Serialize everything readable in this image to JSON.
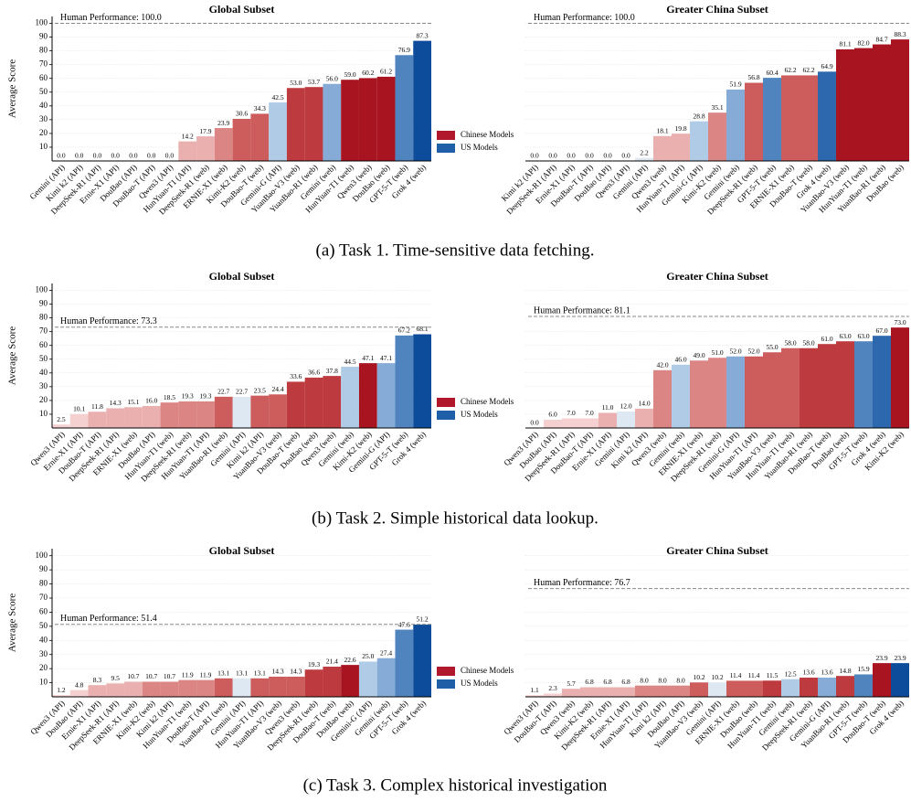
{
  "captions": [
    "(a) Task 1. Time-sensitive data fetching.",
    "(b) Task 2. Simple historical data lookup.",
    "(c) Task 3. Complex historical investigation"
  ],
  "chart_data": [
    {
      "type": "bar",
      "title": "Global Subset",
      "ylabel": "Average Score",
      "yaxis": true,
      "grid": true,
      "ylim": [
        0,
        105
      ],
      "yticks": [
        10,
        20,
        30,
        40,
        50,
        60,
        70,
        80,
        90,
        100
      ],
      "hline": {
        "value": 100,
        "label": "Human Performance: 100.0"
      },
      "legend": [
        {
          "name": "Chinese Models",
          "color": "#b2182b"
        },
        {
          "name": "US Models",
          "color": "#1f5fa8"
        }
      ],
      "categories": [
        "Gemini (API)",
        "Kimi k2 (API)",
        "DeepSeek-R1 (API)",
        "Ernie-X1 (API)",
        "DouBao (API)",
        "DouBao-T (API)",
        "Qwen3 (API)",
        "HunYuan-T1 (API)",
        "DeepSeek-R1 (web)",
        "ERNIE-X1 (web)",
        "Kimi-K2 (web)",
        "DouBao-T (web)",
        "Gemini-G (API)",
        "YuanBao-V3 (web)",
        "YuanBao-R1 (web)",
        "Gemini (web)",
        "HunYuan-T1 (web)",
        "Qwen3 (web)",
        "DouBao (web)",
        "GPT-5-T (web)",
        "Grok 4 (web)"
      ],
      "values": [
        0,
        0,
        0,
        0,
        0,
        0,
        0,
        14.2,
        17.9,
        23.9,
        30.6,
        34.3,
        42.5,
        53.0,
        53.7,
        56.0,
        59.0,
        60.2,
        61.2,
        76.9,
        87.3
      ],
      "value_labels": [
        "0.0",
        "0.0",
        "0.0",
        "0.0",
        "0.0",
        "0.0",
        "0.0",
        "14.2",
        "17.9",
        "23.9",
        "30.6",
        "34.3",
        "42.5",
        "53.0",
        "53.7",
        "56.0",
        "59.0",
        "60.2",
        "61.2",
        "76.9",
        "87.3"
      ],
      "colors": [
        "#dde8f3",
        "#f4d0d0",
        "#f4d0d0",
        "#f4d0d0",
        "#f4d0d0",
        "#f4d0d0",
        "#f4d0d0",
        "#eab0b0",
        "#eab0b0",
        "#dc8585",
        "#cd5c5c",
        "#cd5c5c",
        "#b0cbe6",
        "#bd3a3f",
        "#bd3a3f",
        "#85abd6",
        "#a8141f",
        "#a8141f",
        "#a8141f",
        "#4f84bf",
        "#0d4c9b"
      ]
    },
    {
      "type": "bar",
      "title": "Greater China Subset",
      "yaxis": false,
      "grid": true,
      "ylim": [
        0,
        105
      ],
      "yticks": [
        10,
        20,
        30,
        40,
        50,
        60,
        70,
        80,
        90,
        100
      ],
      "hline": {
        "value": 100,
        "label": "Human Performance: 100.0"
      },
      "categories": [
        "Kimi k2 (API)",
        "DeepSeek-R1 (API)",
        "Ernie-X1 (API)",
        "DouBao-T (API)",
        "DouBao (API)",
        "Qwen3 (API)",
        "Gemini (API)",
        "Qwen3 (web)",
        "HunYuan-T1 (API)",
        "Gemini-G (API)",
        "Kimi-K2 (web)",
        "Gemini (web)",
        "DeepSeek-R1 (web)",
        "GPT-5-T (web)",
        "ERNIE-X1 (web)",
        "DouBao-T (web)",
        "Grok 4 (web)",
        "YuanBao-V3 (web)",
        "HunYuan-T1 (web)",
        "YuanBao-R1 (web)",
        "DouBao (web)"
      ],
      "values": [
        0,
        0,
        0,
        0,
        0,
        0,
        2.2,
        18.1,
        19.8,
        28.8,
        35.1,
        51.9,
        56.8,
        60.4,
        62.2,
        62.2,
        64.9,
        81.1,
        82.0,
        84.7,
        88.3
      ],
      "value_labels": [
        "0.0",
        "0.0",
        "0.0",
        "0.0",
        "0.0",
        "0.0",
        "2.2",
        "18.1",
        "19.8",
        "28.8",
        "35.1",
        "51.9",
        "56.8",
        "60.4",
        "62.2",
        "62.2",
        "64.9",
        "81.1",
        "82.0",
        "84.7",
        "88.3"
      ],
      "colors": [
        "#f4d0d0",
        "#f4d0d0",
        "#f4d0d0",
        "#f4d0d0",
        "#f4d0d0",
        "#f4d0d0",
        "#dde8f3",
        "#eab0b0",
        "#eab0b0",
        "#b0cbe6",
        "#dc8585",
        "#85abd6",
        "#cd5c5c",
        "#4f84bf",
        "#cd5c5c",
        "#cd5c5c",
        "#2d67ad",
        "#a8141f",
        "#a8141f",
        "#a8141f",
        "#a8141f"
      ]
    },
    {
      "type": "bar",
      "title": "Global Subset",
      "ylabel": "Average Score",
      "yaxis": true,
      "grid": true,
      "ylim": [
        0,
        105
      ],
      "yticks": [
        10,
        20,
        30,
        40,
        50,
        60,
        70,
        80,
        90,
        100
      ],
      "hline": {
        "value": 73.3,
        "label": "Human Performance: 73.3"
      },
      "legend": [
        {
          "name": "Chinese Models",
          "color": "#b2182b"
        },
        {
          "name": "US Models",
          "color": "#1f5fa8"
        }
      ],
      "categories": [
        "Qwen3 (API)",
        "Ernie-X1 (API)",
        "DouBao-T (API)",
        "DeepSeek-R1 (API)",
        "ERNIE-X1 (web)",
        "DouBao (API)",
        "HunYuan-T1 (web)",
        "DeepSeek-R1 (web)",
        "HunYuan-T1 (API)",
        "YuanBao-R1 (web)",
        "Gemini (API)",
        "Kimi k2 (API)",
        "YuanBao-V3 (web)",
        "DouBao-T (web)",
        "DouBao (web)",
        "Qwen3 (web)",
        "Gemini (web)",
        "Kimi-K2 (web)",
        "Gemini-G (API)",
        "GPT-5-T (web)",
        "Grok 4 (web)"
      ],
      "values": [
        2.5,
        10.1,
        11.8,
        14.3,
        15.1,
        16.0,
        18.5,
        19.3,
        19.3,
        22.7,
        22.7,
        23.5,
        24.4,
        33.6,
        36.6,
        37.8,
        44.5,
        47.1,
        47.1,
        67.2,
        68.1
      ],
      "value_labels": [
        "2.5",
        "10.1",
        "11.8",
        "14.3",
        "15.1",
        "16.0",
        "18.5",
        "19.3",
        "19.3",
        "22.7",
        "22.7",
        "23.5",
        "24.4",
        "33.6",
        "36.6",
        "37.8",
        "44.5",
        "47.1",
        "47.1",
        "67.2",
        "68.1"
      ],
      "colors": [
        "#f4d0d0",
        "#f4d0d0",
        "#eab0b0",
        "#eab0b0",
        "#eab0b0",
        "#eab0b0",
        "#dc8585",
        "#dc8585",
        "#dc8585",
        "#cd5c5c",
        "#dde8f3",
        "#cd5c5c",
        "#cd5c5c",
        "#bd3a3f",
        "#bd3a3f",
        "#bd3a3f",
        "#b0cbe6",
        "#a8141f",
        "#85abd6",
        "#4f84bf",
        "#0d4c9b"
      ]
    },
    {
      "type": "bar",
      "title": "Greater China Subset",
      "yaxis": false,
      "grid": true,
      "ylim": [
        0,
        105
      ],
      "yticks": [
        10,
        20,
        30,
        40,
        50,
        60,
        70,
        80,
        90,
        100
      ],
      "hline": {
        "value": 81.1,
        "label": "Human Performance: 81.1"
      },
      "categories": [
        "Qwen3 (API)",
        "DouBao (API)",
        "DeepSeek-R1 (API)",
        "DouBao-T (API)",
        "Ernie-X1 (API)",
        "Gemini (API)",
        "Kimi k2 (API)",
        "Qwen3 (web)",
        "Gemini (web)",
        "ERNIE-X1 (web)",
        "DeepSeek-R1 (web)",
        "Gemini-G (API)",
        "HunYuan-T1 (API)",
        "YuanBao-V3 (web)",
        "HunYuan-T1 (web)",
        "YuanBao-R1 (web)",
        "DouBao-T (web)",
        "DouBao (web)",
        "GPT-5-T (web)",
        "Grok 4 (web)",
        "Kimi-K2 (web)"
      ],
      "values": [
        0,
        6.0,
        7.0,
        7.0,
        11.0,
        12.0,
        14.0,
        42.0,
        46.0,
        49.0,
        51.0,
        52.0,
        52.0,
        55.0,
        58.0,
        58.0,
        61.0,
        63.0,
        63.0,
        67.0,
        73.0
      ],
      "value_labels": [
        "0.0",
        "6.0",
        "7.0",
        "7.0",
        "11.0",
        "12.0",
        "14.0",
        "42.0",
        "46.0",
        "49.0",
        "51.0",
        "52.0",
        "52.0",
        "55.0",
        "58.0",
        "58.0",
        "61.0",
        "63.0",
        "63.0",
        "67.0",
        "73.0"
      ],
      "colors": [
        "#f4d0d0",
        "#f4d0d0",
        "#f4d0d0",
        "#f4d0d0",
        "#eab0b0",
        "#dde8f3",
        "#eab0b0",
        "#dc8585",
        "#b0cbe6",
        "#dc8585",
        "#dc8585",
        "#85abd6",
        "#cd5c5c",
        "#cd5c5c",
        "#cd5c5c",
        "#bd3a3f",
        "#bd3a3f",
        "#bd3a3f",
        "#4f84bf",
        "#2d67ad",
        "#a8141f"
      ]
    },
    {
      "type": "bar",
      "title": "Global Subset",
      "ylabel": "Average Score",
      "yaxis": true,
      "grid": true,
      "ylim": [
        0,
        105
      ],
      "yticks": [
        10,
        20,
        30,
        40,
        50,
        60,
        70,
        80,
        90,
        100
      ],
      "hline": {
        "value": 51.4,
        "label": "Human Performance: 51.4"
      },
      "legend": [
        {
          "name": "Chinese Models",
          "color": "#b2182b"
        },
        {
          "name": "US Models",
          "color": "#1f5fa8"
        }
      ],
      "categories": [
        "Qwen3 (API)",
        "DouBao (API)",
        "Ernie-X1 (API)",
        "DeepSeek-R1 (API)",
        "ERNIE-X1 (web)",
        "Kimi-K2 (web)",
        "Kimi k2 (API)",
        "HunYuan-T1 (web)",
        "DouBao-T (API)",
        "YuanBao-R1 (web)",
        "Gemini (API)",
        "HunYuan-T1 (API)",
        "YuanBao-V3 (web)",
        "Qwen3 (web)",
        "DeepSeek-R1 (web)",
        "DouBao-T (web)",
        "DouBao (web)",
        "Gemini-G (API)",
        "Gemini (web)",
        "GPT-5-T (web)",
        "Grok 4 (web)"
      ],
      "values": [
        1.2,
        4.8,
        8.3,
        9.5,
        10.7,
        10.7,
        10.7,
        11.9,
        11.9,
        13.1,
        13.1,
        13.1,
        14.3,
        14.3,
        19.3,
        21.4,
        22.6,
        25.0,
        27.4,
        47.6,
        51.2
      ],
      "value_labels": [
        "1.2",
        "4.8",
        "8.3",
        "9.5",
        "10.7",
        "10.7",
        "10.7",
        "11.9",
        "11.9",
        "13.1",
        "13.1",
        "13.1",
        "14.3",
        "14.3",
        "19.3",
        "21.4",
        "22.6",
        "25.0",
        "27.4",
        "47.6",
        "51.2"
      ],
      "colors": [
        "#f4d0d0",
        "#f4d0d0",
        "#eab0b0",
        "#eab0b0",
        "#eab0b0",
        "#dc8585",
        "#dc8585",
        "#dc8585",
        "#dc8585",
        "#cd5c5c",
        "#dde8f3",
        "#cd5c5c",
        "#cd5c5c",
        "#cd5c5c",
        "#bd3a3f",
        "#bd3a3f",
        "#a8141f",
        "#b0cbe6",
        "#85abd6",
        "#4f84bf",
        "#0d4c9b"
      ]
    },
    {
      "type": "bar",
      "title": "Greater China Subset",
      "yaxis": false,
      "grid": true,
      "ylim": [
        0,
        105
      ],
      "yticks": [
        10,
        20,
        30,
        40,
        50,
        60,
        70,
        80,
        90,
        100
      ],
      "hline": {
        "value": 76.7,
        "label": "Human Performance: 76.7"
      },
      "categories": [
        "Qwen3 (API)",
        "DouBao-T (API)",
        "Qwen3 (web)",
        "Kimi-K2 (web)",
        "DeepSeek-R1 (API)",
        "Ernie-X1 (API)",
        "HunYuan-T1 (API)",
        "Kimi k2 (API)",
        "DouBao (API)",
        "YuanBao-V3 (web)",
        "Gemini (API)",
        "ERNIE-X1 (web)",
        "DouBao (web)",
        "HunYuan-T1 (web)",
        "Gemini (web)",
        "DeepSeek-R1 (web)",
        "Gemini-G (API)",
        "YuanBao-R1 (web)",
        "GPT-5-T (web)",
        "DouBao-T (web)",
        "Grok 4 (web)"
      ],
      "values": [
        1.1,
        2.3,
        5.7,
        6.8,
        6.8,
        6.8,
        8.0,
        8.0,
        8.0,
        10.2,
        10.2,
        11.4,
        11.4,
        11.5,
        12.5,
        13.6,
        13.6,
        14.8,
        15.9,
        23.9,
        23.9
      ],
      "value_labels": [
        "1.1",
        "2.3",
        "5.7",
        "6.8",
        "6.8",
        "6.8",
        "8.0",
        "8.0",
        "8.0",
        "10.2",
        "10.2",
        "11.4",
        "11.4",
        "11.5",
        "12.5",
        "13.6",
        "13.6",
        "14.8",
        "15.9",
        "23.9",
        "23.9"
      ],
      "colors": [
        "#f4d0d0",
        "#f4d0d0",
        "#eab0b0",
        "#eab0b0",
        "#eab0b0",
        "#eab0b0",
        "#dc8585",
        "#dc8585",
        "#dc8585",
        "#cd5c5c",
        "#dde8f3",
        "#cd5c5c",
        "#cd5c5c",
        "#bd3a3f",
        "#b0cbe6",
        "#bd3a3f",
        "#85abd6",
        "#bd3a3f",
        "#4f84bf",
        "#a8141f",
        "#0d4c9b"
      ]
    }
  ]
}
